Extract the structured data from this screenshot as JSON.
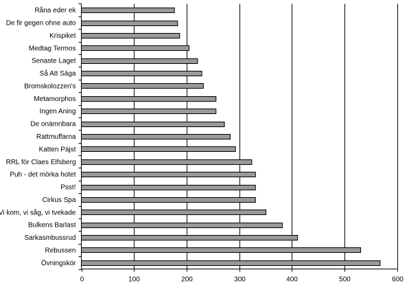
{
  "chart_data": {
    "type": "bar",
    "orientation": "horizontal",
    "categories": [
      "Råna eder ek",
      "De fir gegen ohne auto",
      "Krispiket",
      "Medtag Termos",
      "Senaste Laget",
      "Så Att Säga",
      "Bromskolozzen's",
      "Metamorphos",
      "Ingen Aning",
      "De onämnbara",
      "Rattmuffarna",
      "Katten Päjst",
      "RRL för Claes Elfsberg",
      "Puh - det mörka hotet",
      "Psst!",
      "Cirkus Spa",
      "Vi kom, vi såg, vi tvekade",
      "Bulkens Barlast",
      "Sarkasmbussrud",
      "Rebussen",
      "Övningskör"
    ],
    "values": [
      177,
      183,
      187,
      205,
      221,
      229,
      232,
      256,
      256,
      272,
      283,
      293,
      324,
      331,
      331,
      331,
      351,
      382,
      411,
      531,
      568
    ],
    "xlim": [
      0,
      600
    ],
    "x_ticks": [
      0,
      100,
      200,
      300,
      400,
      500,
      600
    ],
    "grid": "vertical major gridlines",
    "legend": "none",
    "title": "",
    "xlabel": "",
    "ylabel": "",
    "colors": {
      "bar_fill": "#999999",
      "bar_stroke": "#000000",
      "gridline": "#000000",
      "axis": "#000000",
      "background": "#ffffff"
    }
  }
}
